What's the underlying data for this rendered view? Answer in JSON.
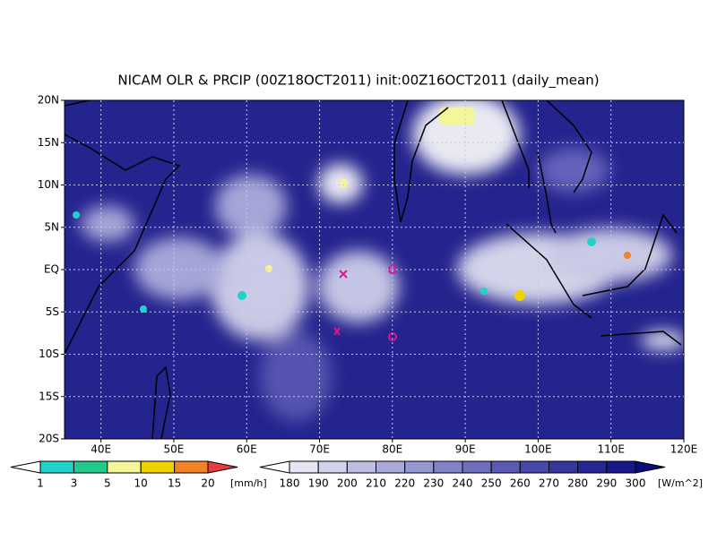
{
  "title": "NICAM OLR & PRCIP (00Z18OCT2011) init:00Z16OCT2011 (daily_mean)",
  "map": {
    "lat_ticks": [
      "20N",
      "15N",
      "10N",
      "5N",
      "EQ",
      "5S",
      "10S",
      "15S",
      "20S"
    ],
    "lon_ticks": [
      "40E",
      "50E",
      "60E",
      "70E",
      "80E",
      "90E",
      "100E",
      "110E",
      "120E"
    ]
  },
  "precip_legend": {
    "labels": [
      "1",
      "3",
      "5",
      "10",
      "15",
      "20"
    ],
    "unit": "[mm/h]",
    "colors": [
      "#ffffff",
      "#22d2c8",
      "#22c88c",
      "#f5f59a",
      "#f0d200",
      "#f08228",
      "#e63c3c"
    ]
  },
  "olr_legend": {
    "labels": [
      "180",
      "190",
      "200",
      "210",
      "220",
      "230",
      "240",
      "250",
      "260",
      "270",
      "280",
      "290",
      "300"
    ],
    "unit": "[W/m^2]",
    "colors": [
      "#ffffff",
      "#e6e6f2",
      "#d2d2ea",
      "#bebee2",
      "#aaaada",
      "#9696d0",
      "#8282c6",
      "#6e6ebc",
      "#5a5ab2",
      "#4848a8",
      "#36369e",
      "#262694",
      "#181888",
      "#0c0c7a"
    ]
  }
}
